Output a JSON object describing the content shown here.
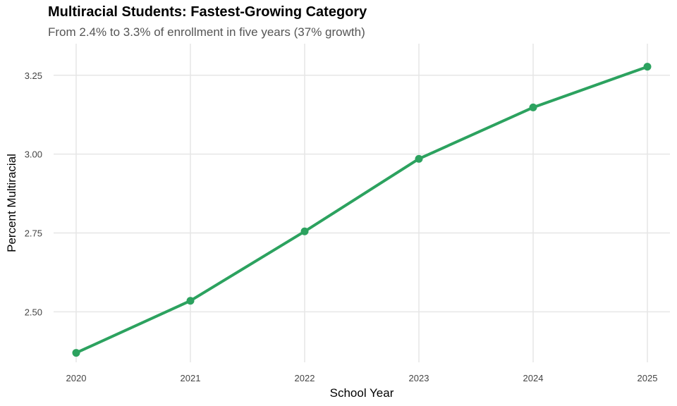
{
  "chart_data": {
    "type": "line",
    "title": "Multiracial Students: Fastest-Growing Category",
    "subtitle": "From 2.4% to 3.3% of enrollment in five years (37% growth)",
    "xlabel": "School Year",
    "ylabel": "Percent Multiracial",
    "x": [
      2020,
      2021,
      2022,
      2023,
      2024,
      2025
    ],
    "x_tick_labels": [
      "2020",
      "2021",
      "2022",
      "2023",
      "2024",
      "2025"
    ],
    "y_ticks": [
      2.5,
      2.75,
      3.0,
      3.25
    ],
    "y_tick_labels": [
      "2.50",
      "2.75",
      "3.00",
      "3.25"
    ],
    "ylim": [
      2.34,
      3.35
    ],
    "series": [
      {
        "values": [
          2.37,
          2.535,
          2.755,
          2.985,
          3.148,
          3.277
        ]
      }
    ],
    "line_color": "#2ca25f",
    "grid": true,
    "legend": "none"
  }
}
